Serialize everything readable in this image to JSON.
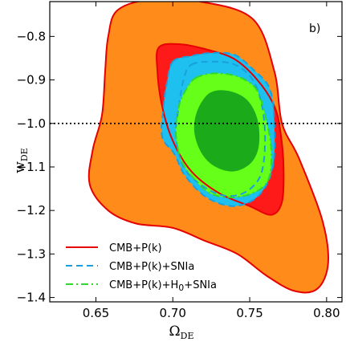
{
  "chart_data": {
    "type": "contour",
    "panel_label": "b)",
    "xlabel": {
      "main": "Ω",
      "sub": "DE"
    },
    "ylabel": {
      "main": "w",
      "sub": "DE"
    },
    "xlim": [
      0.62,
      0.81
    ],
    "ylim": [
      -1.41,
      -0.72
    ],
    "x_ticks": [
      0.65,
      0.7,
      0.75,
      0.8
    ],
    "x_tick_labels": [
      "0.65",
      "0.70",
      "0.75",
      "0.80"
    ],
    "y_ticks": [
      -0.8,
      -0.9,
      -1.0,
      -1.1,
      -1.2,
      -1.3,
      -1.4
    ],
    "y_tick_labels": [
      "−0.8",
      "−0.9",
      "−1.0",
      "−1.1",
      "−1.2",
      "−1.3",
      "−1.4"
    ],
    "reference_line": {
      "y": -1.0,
      "style": "dotted",
      "color": "#000000"
    },
    "regions": [
      {
        "name": "outer-orange",
        "level": "95%",
        "color": "#ff8c1a",
        "boundary": [
          [
            0.664,
            -0.74
          ],
          [
            0.686,
            -0.715
          ],
          [
            0.718,
            -0.72
          ],
          [
            0.752,
            -0.76
          ],
          [
            0.766,
            -0.88
          ],
          [
            0.771,
            -1.0
          ],
          [
            0.782,
            -1.08
          ],
          [
            0.797,
            -1.22
          ],
          [
            0.801,
            -1.32
          ],
          [
            0.794,
            -1.38
          ],
          [
            0.779,
            -1.385
          ],
          [
            0.761,
            -1.35
          ],
          [
            0.742,
            -1.3
          ],
          [
            0.721,
            -1.27
          ],
          [
            0.7,
            -1.24
          ],
          [
            0.676,
            -1.23
          ],
          [
            0.658,
            -1.2
          ],
          [
            0.646,
            -1.14
          ],
          [
            0.648,
            -1.06
          ],
          [
            0.654,
            -0.98
          ],
          [
            0.656,
            -0.88
          ],
          [
            0.658,
            -0.8
          ]
        ]
      },
      {
        "name": "red-inner",
        "level": "68%",
        "color": "#ff1a1a",
        "boundary": [
          [
            0.691,
            -0.825
          ],
          [
            0.705,
            -0.818
          ],
          [
            0.722,
            -0.83
          ],
          [
            0.74,
            -0.852
          ],
          [
            0.755,
            -0.9
          ],
          [
            0.766,
            -0.96
          ],
          [
            0.77,
            -1.02
          ],
          [
            0.772,
            -1.1
          ],
          [
            0.771,
            -1.18
          ],
          [
            0.764,
            -1.21
          ],
          [
            0.75,
            -1.19
          ],
          [
            0.73,
            -1.16
          ],
          [
            0.712,
            -1.11
          ],
          [
            0.7,
            -1.04
          ],
          [
            0.693,
            -0.96
          ],
          [
            0.69,
            -0.88
          ]
        ]
      },
      {
        "name": "blue-outer",
        "level": "95%",
        "color": "#1ec0f0",
        "boundary": [
          [
            0.7,
            -0.858
          ],
          [
            0.712,
            -0.845
          ],
          [
            0.725,
            -0.838
          ],
          [
            0.74,
            -0.842
          ],
          [
            0.752,
            -0.875
          ],
          [
            0.763,
            -0.92
          ],
          [
            0.766,
            -1.0
          ],
          [
            0.765,
            -1.1
          ],
          [
            0.756,
            -1.165
          ],
          [
            0.74,
            -1.19
          ],
          [
            0.722,
            -1.17
          ],
          [
            0.708,
            -1.12
          ],
          [
            0.701,
            -1.07
          ],
          [
            0.693,
            -1.03
          ],
          [
            0.694,
            -0.96
          ],
          [
            0.696,
            -0.91
          ]
        ]
      },
      {
        "name": "green-outer",
        "level": "95%",
        "color": "#66ff1a",
        "boundary": [
          [
            0.715,
            -0.895
          ],
          [
            0.727,
            -0.885
          ],
          [
            0.742,
            -0.892
          ],
          [
            0.754,
            -0.92
          ],
          [
            0.76,
            -0.98
          ],
          [
            0.764,
            -1.06
          ],
          [
            0.762,
            -1.13
          ],
          [
            0.752,
            -1.16
          ],
          [
            0.738,
            -1.17
          ],
          [
            0.724,
            -1.16
          ],
          [
            0.712,
            -1.12
          ],
          [
            0.705,
            -1.08
          ],
          [
            0.702,
            -1.02
          ],
          [
            0.704,
            -0.96
          ],
          [
            0.709,
            -0.92
          ]
        ]
      },
      {
        "name": "green-inner",
        "level": "68%",
        "color": "#1aaa1a",
        "boundary": [
          [
            0.724,
            -0.93
          ],
          [
            0.736,
            -0.925
          ],
          [
            0.748,
            -0.945
          ],
          [
            0.755,
            -0.99
          ],
          [
            0.756,
            -1.05
          ],
          [
            0.751,
            -1.09
          ],
          [
            0.74,
            -1.11
          ],
          [
            0.728,
            -1.1
          ],
          [
            0.719,
            -1.07
          ],
          [
            0.714,
            -1.02
          ],
          [
            0.716,
            -0.97
          ]
        ]
      }
    ],
    "series": [
      {
        "name": "CMB+P(k)",
        "color": "#e60000",
        "dash": "solid",
        "contours": [
          [
            [
              0.664,
              -0.74
            ],
            [
              0.686,
              -0.715
            ],
            [
              0.718,
              -0.72
            ],
            [
              0.752,
              -0.76
            ],
            [
              0.766,
              -0.88
            ],
            [
              0.771,
              -1.0
            ],
            [
              0.782,
              -1.08
            ],
            [
              0.797,
              -1.22
            ],
            [
              0.801,
              -1.32
            ],
            [
              0.794,
              -1.38
            ],
            [
              0.779,
              -1.385
            ],
            [
              0.761,
              -1.35
            ],
            [
              0.742,
              -1.3
            ],
            [
              0.721,
              -1.27
            ],
            [
              0.7,
              -1.24
            ],
            [
              0.676,
              -1.23
            ],
            [
              0.658,
              -1.2
            ],
            [
              0.646,
              -1.14
            ],
            [
              0.648,
              -1.06
            ],
            [
              0.654,
              -0.98
            ],
            [
              0.656,
              -0.88
            ],
            [
              0.658,
              -0.8
            ]
          ],
          [
            [
              0.691,
              -0.825
            ],
            [
              0.705,
              -0.818
            ],
            [
              0.722,
              -0.83
            ],
            [
              0.74,
              -0.852
            ],
            [
              0.755,
              -0.9
            ],
            [
              0.766,
              -0.96
            ],
            [
              0.77,
              -1.02
            ],
            [
              0.772,
              -1.1
            ],
            [
              0.771,
              -1.18
            ],
            [
              0.764,
              -1.21
            ],
            [
              0.75,
              -1.19
            ],
            [
              0.73,
              -1.16
            ],
            [
              0.712,
              -1.11
            ],
            [
              0.7,
              -1.04
            ],
            [
              0.693,
              -0.96
            ],
            [
              0.69,
              -0.88
            ]
          ]
        ]
      },
      {
        "name": "CMB+P(k)+SNIa",
        "color": "#1a9fdc",
        "dash": "dashed",
        "contours": [
          [
            [
              0.7,
              -0.858
            ],
            [
              0.712,
              -0.845
            ],
            [
              0.725,
              -0.838
            ],
            [
              0.74,
              -0.842
            ],
            [
              0.752,
              -0.875
            ],
            [
              0.763,
              -0.92
            ],
            [
              0.766,
              -1.0
            ],
            [
              0.765,
              -1.1
            ],
            [
              0.756,
              -1.165
            ],
            [
              0.74,
              -1.19
            ],
            [
              0.722,
              -1.17
            ],
            [
              0.708,
              -1.12
            ],
            [
              0.701,
              -1.07
            ],
            [
              0.693,
              -1.03
            ],
            [
              0.694,
              -0.96
            ],
            [
              0.696,
              -0.91
            ]
          ],
          [
            [
              0.712,
              -0.865
            ],
            [
              0.727,
              -0.858
            ],
            [
              0.741,
              -0.866
            ],
            [
              0.752,
              -0.9
            ],
            [
              0.758,
              -0.96
            ],
            [
              0.76,
              -1.04
            ],
            [
              0.757,
              -1.12
            ],
            [
              0.746,
              -1.16
            ],
            [
              0.732,
              -1.165
            ],
            [
              0.718,
              -1.14
            ],
            [
              0.707,
              -1.1
            ],
            [
              0.702,
              -1.03
            ],
            [
              0.704,
              -0.96
            ],
            [
              0.707,
              -0.9
            ]
          ]
        ]
      },
      {
        "name": "CMB+P(k)+H",
        "name_sub": "0",
        "name_suffix": "+SNIa",
        "color": "#2ed82e",
        "dash": "dashdot",
        "contours": [
          [
            [
              0.715,
              -0.895
            ],
            [
              0.727,
              -0.885
            ],
            [
              0.742,
              -0.892
            ],
            [
              0.754,
              -0.92
            ],
            [
              0.76,
              -0.98
            ],
            [
              0.764,
              -1.06
            ],
            [
              0.762,
              -1.13
            ],
            [
              0.752,
              -1.16
            ],
            [
              0.738,
              -1.17
            ],
            [
              0.724,
              -1.16
            ],
            [
              0.712,
              -1.12
            ],
            [
              0.705,
              -1.08
            ],
            [
              0.702,
              -1.02
            ],
            [
              0.704,
              -0.96
            ],
            [
              0.709,
              -0.92
            ]
          ]
        ]
      }
    ],
    "legend": {
      "placement": "bottom-left"
    }
  }
}
